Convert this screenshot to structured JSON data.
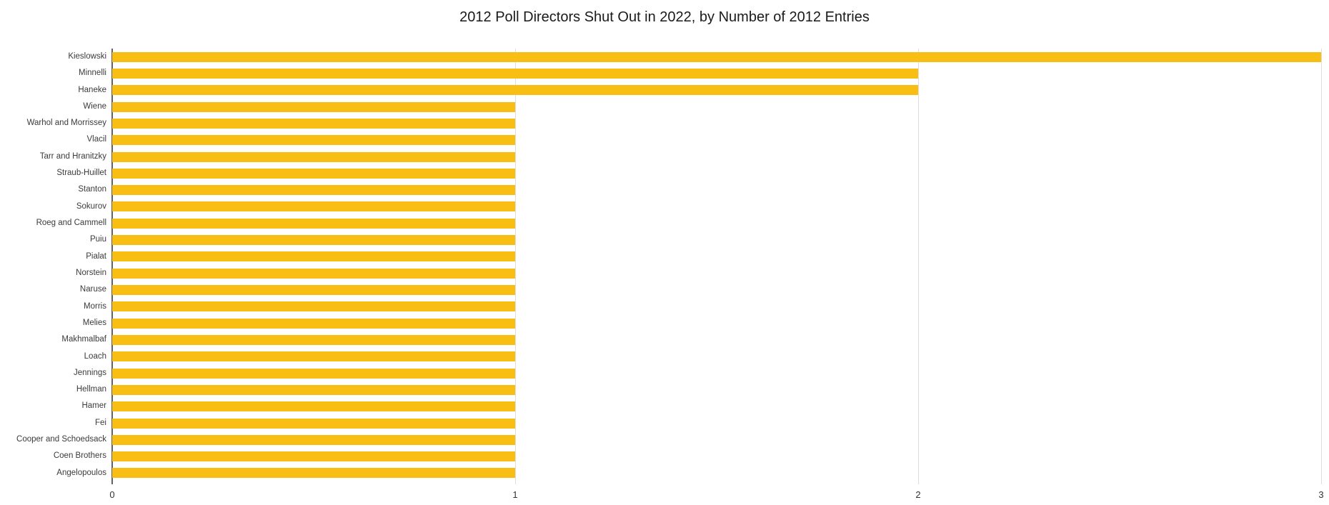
{
  "chart_data": {
    "type": "bar",
    "orientation": "horizontal",
    "title": "2012 Poll Directors Shut Out in 2022, by Number of 2012 Entries",
    "categories": [
      "Kieslowski",
      "Minnelli",
      "Haneke",
      "Wiene",
      "Warhol and Morrissey",
      "Vlacil",
      "Tarr and Hranitzky",
      "Straub-Huillet",
      "Stanton",
      "Sokurov",
      "Roeg and Cammell",
      "Puiu",
      "Pialat",
      "Norstein",
      "Naruse",
      "Morris",
      "Melies",
      "Makhmalbaf",
      "Loach",
      "Jennings",
      "Hellman",
      "Hamer",
      "Fei",
      "Cooper and Schoedsack",
      "Coen Brothers",
      "Angelopoulos"
    ],
    "values": [
      3,
      2,
      2,
      1,
      1,
      1,
      1,
      1,
      1,
      1,
      1,
      1,
      1,
      1,
      1,
      1,
      1,
      1,
      1,
      1,
      1,
      1,
      1,
      1,
      1,
      1
    ],
    "xlabel": "",
    "ylabel": "",
    "xlim": [
      0,
      3
    ],
    "xticks": [
      0,
      1,
      2,
      3
    ],
    "grid": true,
    "legend_position": "none"
  },
  "colors": {
    "bar": "#F8BE14",
    "axis": "#616161",
    "gridline": "#DEDEDE",
    "tick_label": "#333333",
    "category_label": "#3b3b3b",
    "title": "#1a1a1a",
    "background": "#FFFFFF"
  }
}
